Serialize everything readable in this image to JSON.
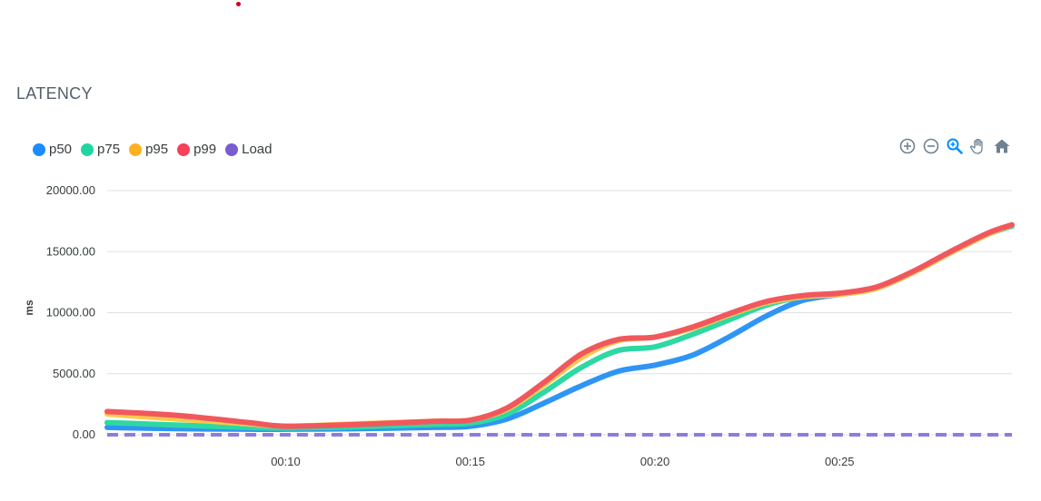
{
  "panel": {
    "title": "LATENCY"
  },
  "legend": [
    {
      "label": "p50",
      "color": "#1a8cff"
    },
    {
      "label": "p75",
      "color": "#1fd6a0"
    },
    {
      "label": "p95",
      "color": "#ffb020"
    },
    {
      "label": "p99",
      "color": "#f5405a"
    },
    {
      "label": "Load",
      "color": "#775dd0"
    }
  ],
  "toolbar": {
    "zoom_in_icon": "plus-circle-icon",
    "zoom_out_icon": "minus-circle-icon",
    "selection_zoom_icon": "magnifier-icon",
    "pan_icon": "hand-icon",
    "reset_icon": "home-icon"
  },
  "chart_data": {
    "type": "line",
    "title": "LATENCY",
    "xlabel": "",
    "ylabel": "ms",
    "xlim": [
      "00:05:10",
      "00:29:40"
    ],
    "ylim": [
      0,
      20000
    ],
    "yticks": [
      "0.00",
      "5000.00",
      "10000.00",
      "15000.00",
      "20000.00"
    ],
    "xticks": [
      "00:10",
      "00:15",
      "00:20",
      "00:25"
    ],
    "grid": true,
    "legend_position": "top-left",
    "x": [
      "00:05:10",
      "00:07",
      "00:09",
      "00:10",
      "00:12",
      "00:14",
      "00:15",
      "00:16",
      "00:17",
      "00:18",
      "00:19",
      "00:20",
      "00:21",
      "00:22",
      "00:23",
      "00:24",
      "00:25",
      "00:26",
      "00:27",
      "00:28",
      "00:29",
      "00:29:40"
    ],
    "series": [
      {
        "name": "p50",
        "color": "#2f95f5",
        "values": [
          600,
          500,
          450,
          450,
          500,
          600,
          700,
          1300,
          2600,
          4000,
          5200,
          5700,
          6500,
          8000,
          9700,
          11000,
          11500,
          12000,
          13300,
          14900,
          16400,
          17100
        ]
      },
      {
        "name": "p75",
        "color": "#2ed8a3",
        "values": [
          1000,
          800,
          600,
          550,
          650,
          850,
          950,
          1700,
          3500,
          5500,
          6900,
          7200,
          8200,
          9400,
          10600,
          11300,
          11500,
          12000,
          13300,
          14900,
          16400,
          17100
        ]
      },
      {
        "name": "p95",
        "color": "#ffc94a",
        "values": [
          1700,
          1300,
          900,
          700,
          900,
          1100,
          1200,
          2100,
          4100,
          6300,
          7700,
          8000,
          8700,
          9800,
          10800,
          11300,
          11500,
          12000,
          13300,
          14900,
          16400,
          17200
        ]
      },
      {
        "name": "p99",
        "color": "#f0585e",
        "values": [
          1900,
          1600,
          1000,
          700,
          850,
          1100,
          1200,
          2200,
          4300,
          6600,
          7800,
          8000,
          8800,
          9900,
          10900,
          11400,
          11600,
          12100,
          13400,
          15000,
          16500,
          17200
        ]
      },
      {
        "name": "Load",
        "color": "#8c7ce0",
        "dashed": true,
        "values": [
          0,
          0,
          0,
          0,
          0,
          0,
          0,
          0,
          0,
          0,
          0,
          0,
          0,
          0,
          0,
          0,
          0,
          0,
          0,
          0,
          0,
          0
        ]
      }
    ]
  }
}
